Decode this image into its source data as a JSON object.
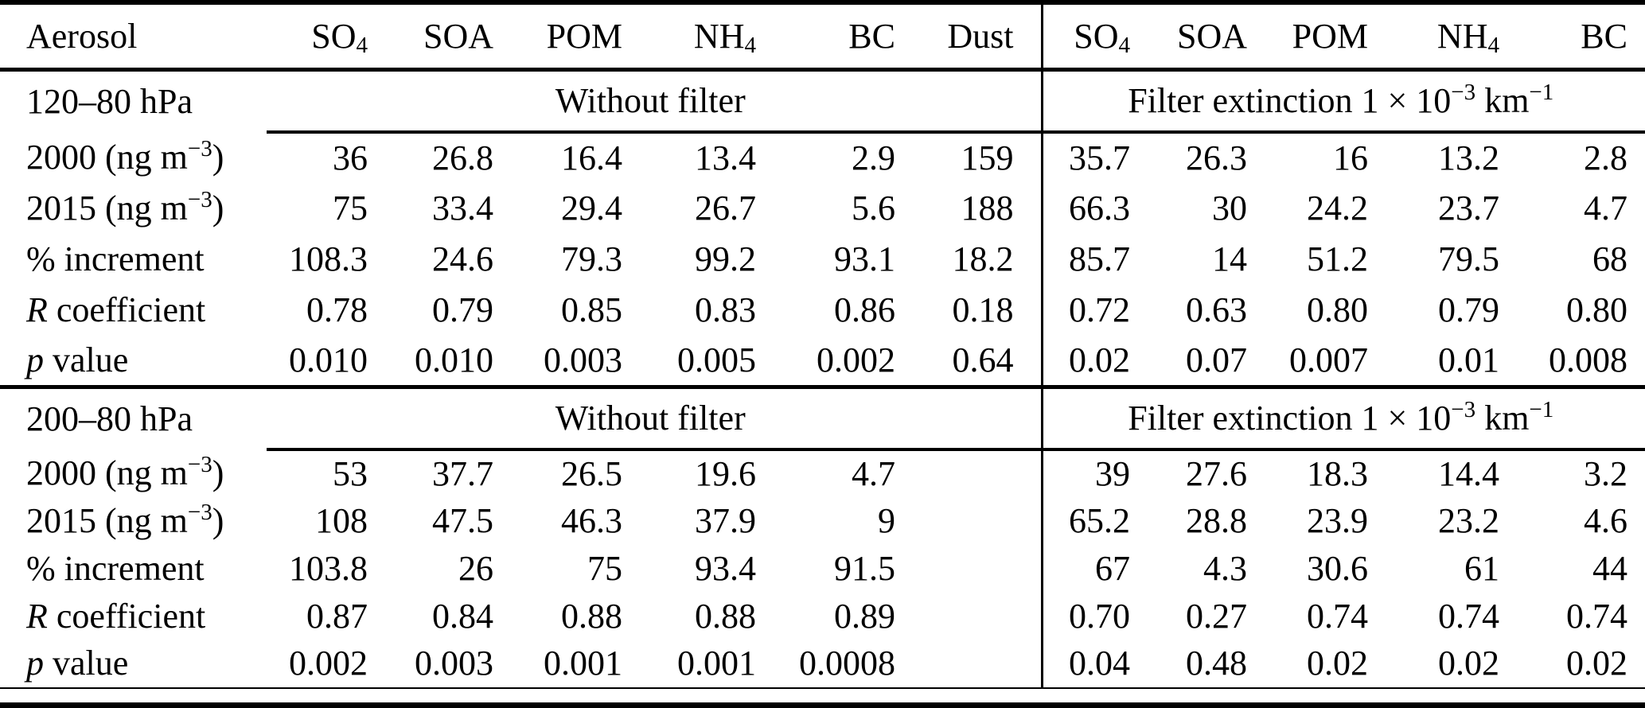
{
  "colors": {
    "text": "#000000",
    "rule": "#000000",
    "background": "#ffffff"
  },
  "table": {
    "columns": [
      {
        "base": "Aerosol",
        "sub": ""
      },
      {
        "base": "SO",
        "sub": "4"
      },
      {
        "base": "SOA",
        "sub": ""
      },
      {
        "base": "POM",
        "sub": ""
      },
      {
        "base": "NH",
        "sub": "4"
      },
      {
        "base": "BC",
        "sub": ""
      },
      {
        "base": "Dust",
        "sub": ""
      },
      {
        "base": "SO",
        "sub": "4"
      },
      {
        "base": "SOA",
        "sub": ""
      },
      {
        "base": "POM",
        "sub": ""
      },
      {
        "base": "NH",
        "sub": "4"
      },
      {
        "base": "BC",
        "sub": ""
      }
    ],
    "sections": [
      {
        "range_label": "120–80 hPa",
        "group_left": "Without filter",
        "group_right": {
          "p1": "Filter extinction 1 × 10",
          "s1": "−3",
          "p2": " km",
          "s2": "−1"
        },
        "rows": [
          {
            "label": {
              "italic": "",
              "pre": "2000 (ng m",
              "sup": "−3",
              "post": ")"
            },
            "values": [
              "36",
              "26.8",
              "16.4",
              "13.4",
              "2.9",
              "159",
              "35.7",
              "26.3",
              "16",
              "13.2",
              "2.8"
            ]
          },
          {
            "label": {
              "italic": "",
              "pre": "2015 (ng m",
              "sup": "−3",
              "post": ")"
            },
            "values": [
              "75",
              "33.4",
              "29.4",
              "26.7",
              "5.6",
              "188",
              "66.3",
              "30",
              "24.2",
              "23.7",
              "4.7"
            ]
          },
          {
            "label": {
              "italic": "",
              "pre": "% increment",
              "sup": "",
              "post": ""
            },
            "values": [
              "108.3",
              "24.6",
              "79.3",
              "99.2",
              "93.1",
              "18.2",
              "85.7",
              "14",
              "51.2",
              "79.5",
              "68"
            ]
          },
          {
            "label": {
              "italic": "R",
              "pre": " coefficient",
              "sup": "",
              "post": ""
            },
            "values": [
              "0.78",
              "0.79",
              "0.85",
              "0.83",
              "0.86",
              "0.18",
              "0.72",
              "0.63",
              "0.80",
              "0.79",
              "0.80"
            ]
          },
          {
            "label": {
              "italic": "p",
              "pre": " value",
              "sup": "",
              "post": ""
            },
            "values": [
              "0.010",
              "0.010",
              "0.003",
              "0.005",
              "0.002",
              "0.64",
              "0.02",
              "0.07",
              "0.007",
              "0.01",
              "0.008"
            ]
          }
        ]
      },
      {
        "range_label": "200–80 hPa",
        "group_left": "Without filter",
        "group_right": {
          "p1": "Filter extinction 1 × 10",
          "s1": "−3",
          "p2": " km",
          "s2": "−1"
        },
        "rows": [
          {
            "label": {
              "italic": "",
              "pre": "2000 (ng m",
              "sup": "−3",
              "post": ")"
            },
            "values": [
              "53",
              "37.7",
              "26.5",
              "19.6",
              "4.7",
              "",
              "39",
              "27.6",
              "18.3",
              "14.4",
              "3.2"
            ]
          },
          {
            "label": {
              "italic": "",
              "pre": "2015 (ng m",
              "sup": "−3",
              "post": ")"
            },
            "values": [
              "108",
              "47.5",
              "46.3",
              "37.9",
              "9",
              "",
              "65.2",
              "28.8",
              "23.9",
              "23.2",
              "4.6"
            ]
          },
          {
            "label": {
              "italic": "",
              "pre": "% increment",
              "sup": "",
              "post": ""
            },
            "values": [
              "103.8",
              "26",
              "75",
              "93.4",
              "91.5",
              "",
              "67",
              "4.3",
              "30.6",
              "61",
              "44"
            ]
          },
          {
            "label": {
              "italic": "R",
              "pre": " coefficient",
              "sup": "",
              "post": ""
            },
            "values": [
              "0.87",
              "0.84",
              "0.88",
              "0.88",
              "0.89",
              "",
              "0.70",
              "0.27",
              "0.74",
              "0.74",
              "0.74"
            ]
          },
          {
            "label": {
              "italic": "p",
              "pre": " value",
              "sup": "",
              "post": ""
            },
            "values": [
              "0.002",
              "0.003",
              "0.001",
              "0.001",
              "0.0008",
              "",
              "0.04",
              "0.48",
              "0.02",
              "0.02",
              "0.02"
            ]
          }
        ]
      }
    ]
  }
}
